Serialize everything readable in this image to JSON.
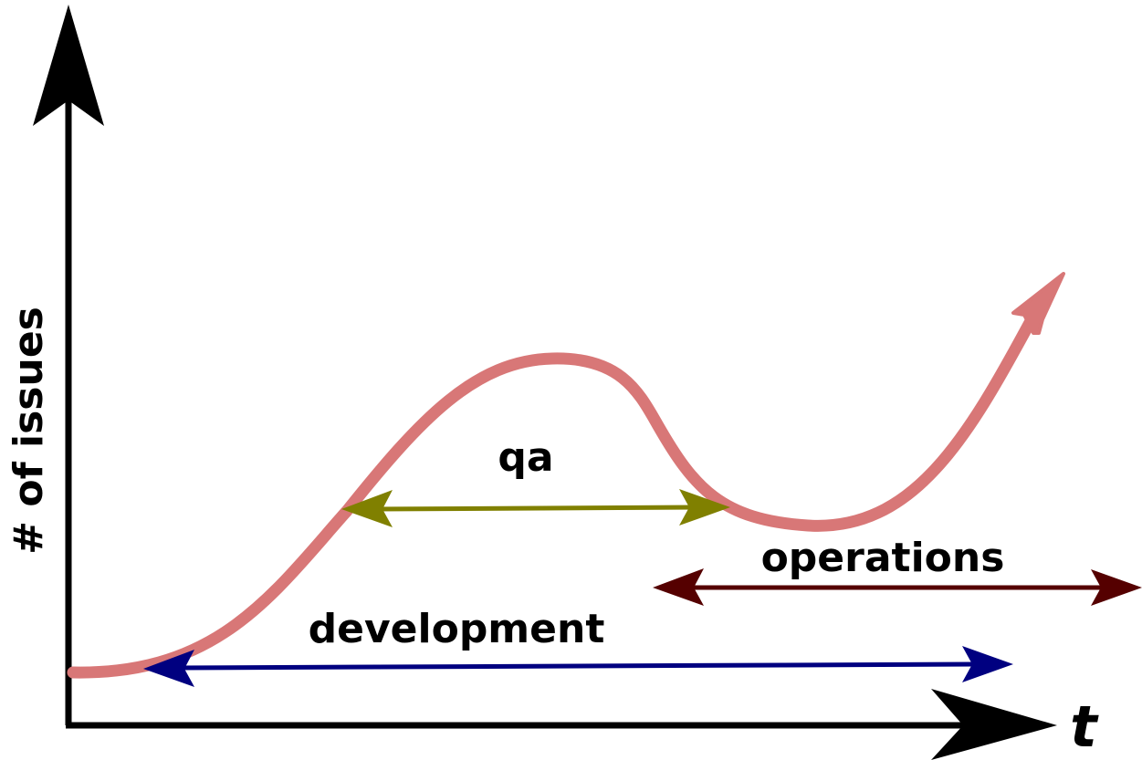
{
  "axes": {
    "y_label": "# of issues",
    "x_label": "t"
  },
  "phases": {
    "development": {
      "label": "development",
      "color": "#000080"
    },
    "qa": {
      "label": "qa",
      "color": "#808000"
    },
    "operations": {
      "label": "operations",
      "color": "#550000"
    }
  },
  "curve": {
    "color": "#d87777"
  },
  "axis_color": "#000000"
}
